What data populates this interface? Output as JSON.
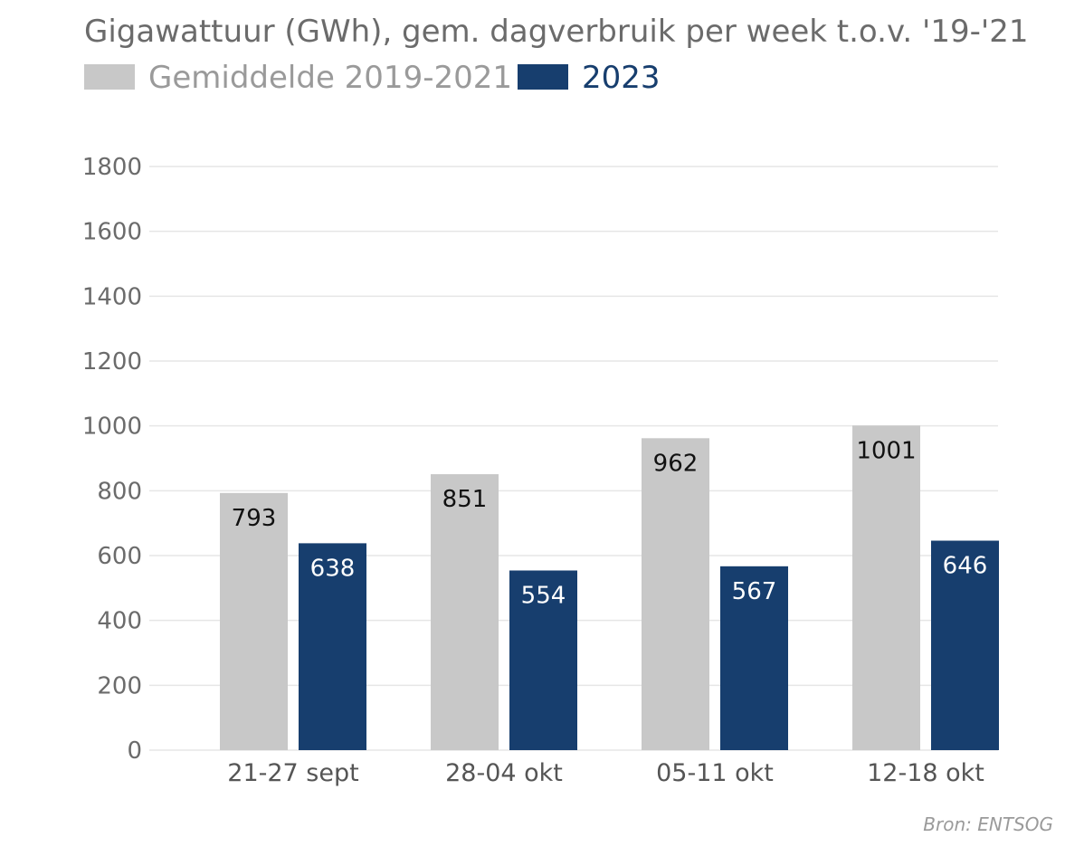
{
  "chart_data": {
    "type": "bar",
    "title": "Gigawattuur (GWh), gem. dagverbruik per week t.o.v. '19-'21",
    "categories": [
      "21-27 sept",
      "28-04 okt",
      "05-11 okt",
      "12-18 okt"
    ],
    "series": [
      {
        "name": "Gemiddelde 2019-2021",
        "color": "#c8c8c8",
        "label_color": "#111111",
        "legend_text_color": "#9a9a9a",
        "values": [
          793,
          851,
          962,
          1001
        ]
      },
      {
        "name": "2023",
        "color": "#173e6e",
        "label_color": "#ffffff",
        "legend_text_color": "#173e6e",
        "values": [
          638,
          554,
          567,
          646
        ]
      }
    ],
    "ylim": [
      0,
      1800
    ],
    "yticks": [
      0,
      200,
      400,
      600,
      800,
      1000,
      1200,
      1400,
      1600,
      1800
    ],
    "xlabel": "",
    "ylabel": "",
    "grid": true,
    "legend_position": "top-left",
    "source": "Bron: ENTSOG"
  }
}
